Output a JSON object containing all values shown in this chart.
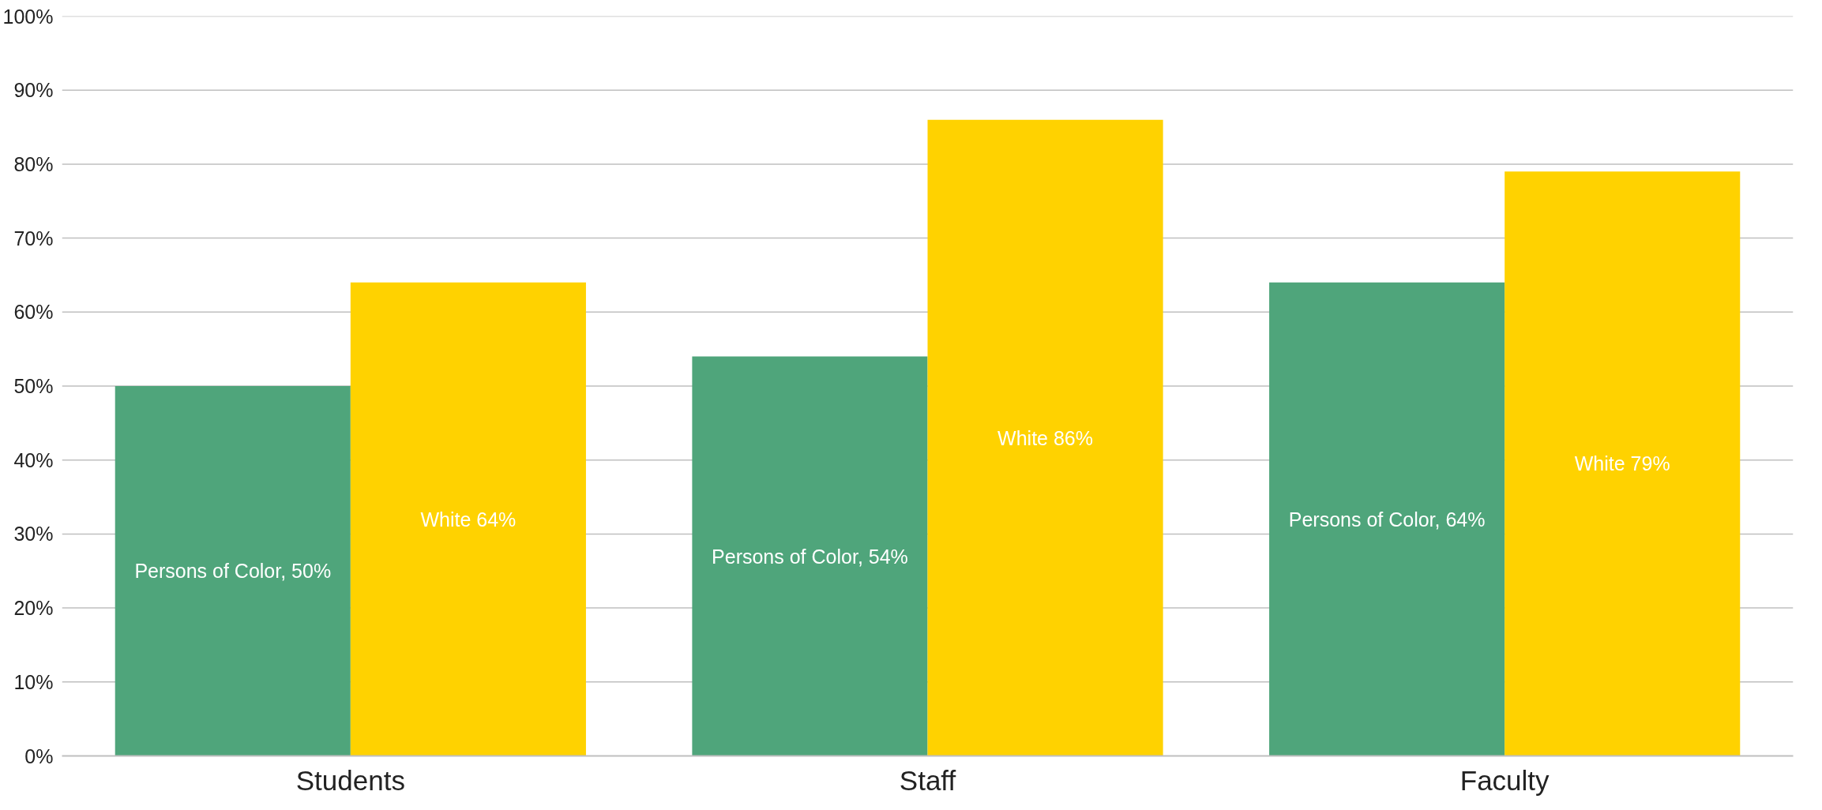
{
  "chart_data": {
    "type": "bar",
    "categories": [
      "Students",
      "Staff",
      "Faculty"
    ],
    "series": [
      {
        "color": "#4fa57b",
        "values": [
          50,
          54,
          64
        ],
        "value_labels": [
          "Persons of Color, 50%",
          "Persons of Color, 54%",
          "Persons of Color, 64%"
        ]
      },
      {
        "color": "#ffd200",
        "values": [
          64,
          86,
          79
        ],
        "value_labels": [
          "White 64%",
          "White 86%",
          "White 79%"
        ]
      }
    ],
    "ylim": [
      0,
      100
    ],
    "yticks": [
      {
        "value": 0,
        "label": "0%"
      },
      {
        "value": 10,
        "label": "10%"
      },
      {
        "value": 20,
        "label": "20%"
      },
      {
        "value": 30,
        "label": "30%"
      },
      {
        "value": 40,
        "label": "40%"
      },
      {
        "value": 50,
        "label": "50%"
      },
      {
        "value": 60,
        "label": "60%"
      },
      {
        "value": 70,
        "label": "70%"
      },
      {
        "value": 80,
        "label": "80%"
      },
      {
        "value": 90,
        "label": "90%"
      },
      {
        "value": 100,
        "label": "100%"
      }
    ],
    "grid": "y",
    "legend": false
  }
}
